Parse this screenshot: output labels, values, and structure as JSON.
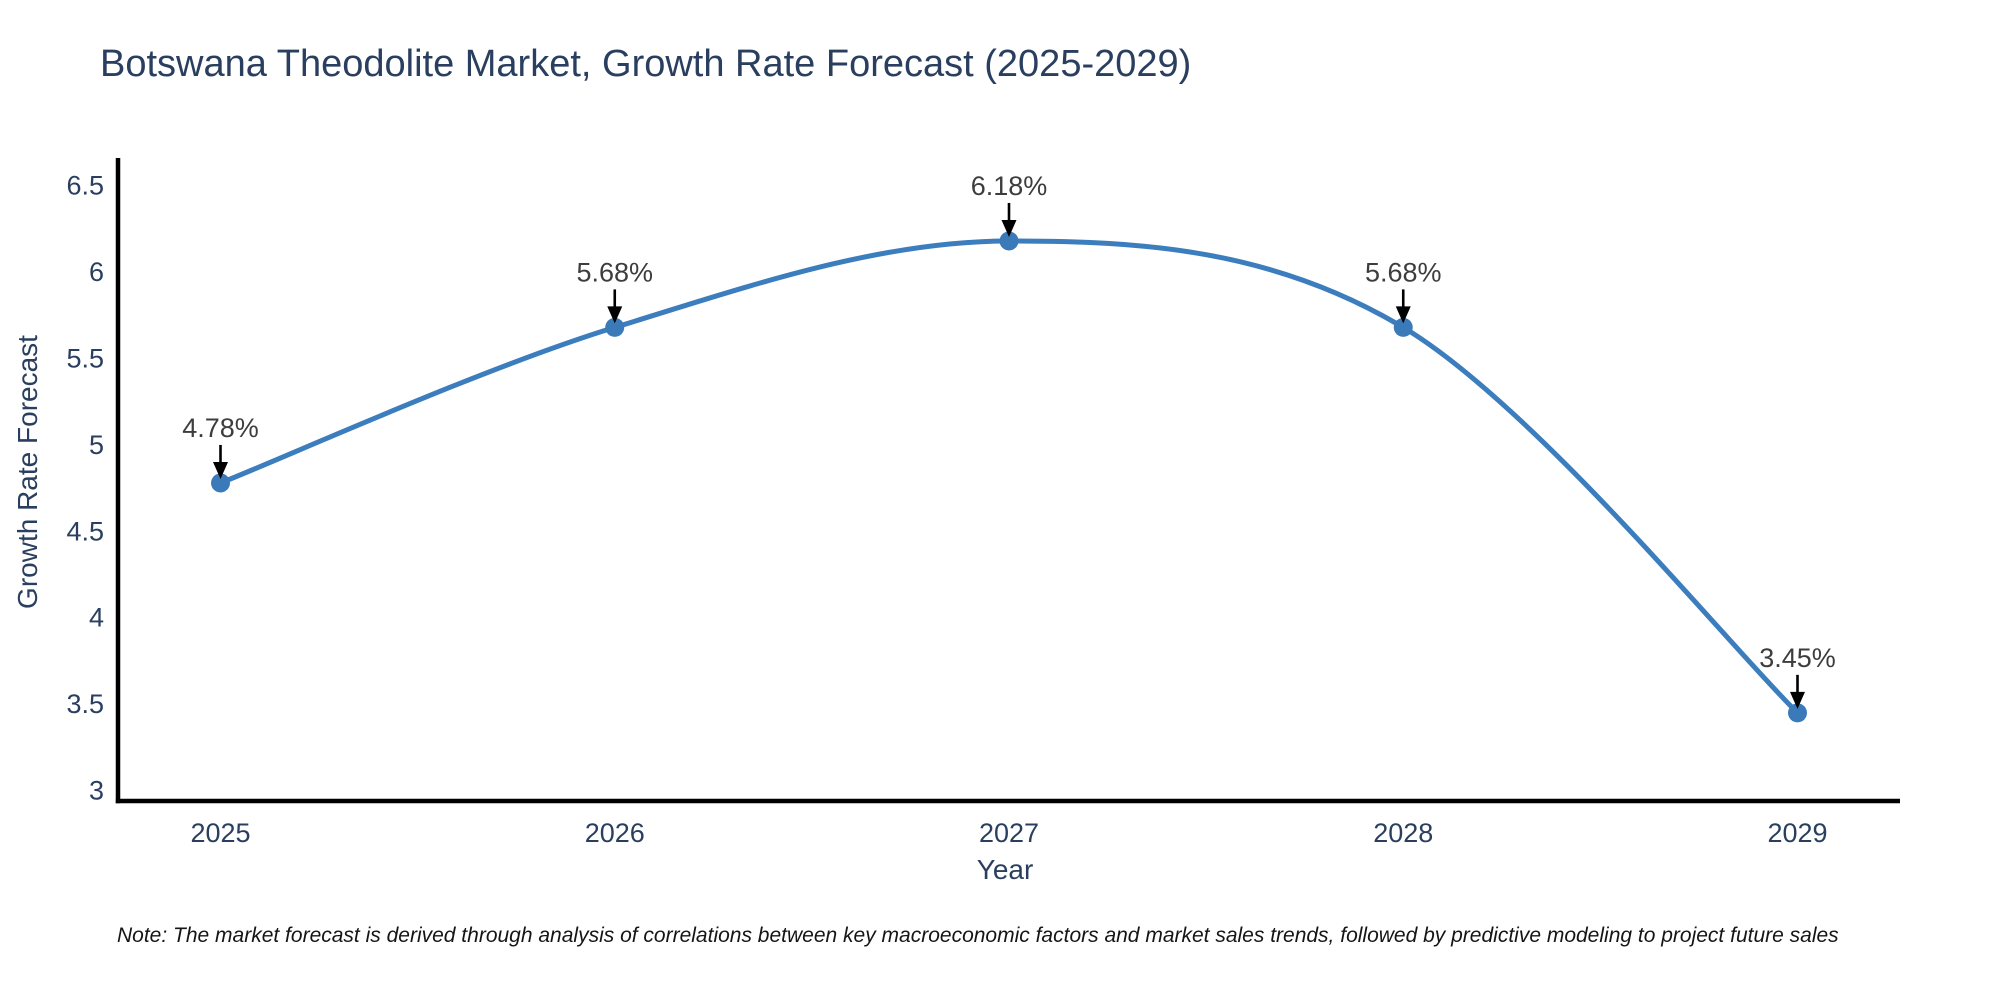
{
  "page": {
    "footnote": "Note: The market forecast is derived through analysis of correlations between key macroeconomic factors and market sales trends, followed by predictive modeling to project future sales"
  },
  "chart_data": {
    "type": "line",
    "title": "Botswana Theodolite Market, Growth Rate Forecast (2025-2029)",
    "xlabel": "Year",
    "ylabel": "Growth Rate Forecast",
    "x": [
      2025,
      2026,
      2027,
      2028,
      2029
    ],
    "series": [
      {
        "name": "Growth Rate Forecast",
        "values": [
          4.78,
          5.68,
          6.18,
          5.68,
          3.45
        ],
        "labels": [
          "4.78%",
          "5.68%",
          "6.18%",
          "5.68%",
          "3.45%"
        ]
      }
    ],
    "xticks": [
      2025,
      2026,
      2027,
      2028,
      2029
    ],
    "yticks": [
      3,
      3.5,
      4,
      4.5,
      5,
      5.5,
      6,
      6.5
    ],
    "xlim": [
      2024.74,
      2029.26
    ],
    "ylim": [
      2.94,
      6.66
    ],
    "grid": false,
    "legend": "none",
    "line_shape": "spline",
    "marker": "circle",
    "annotation_style": "value labels with downward arrows onto points",
    "colors": {
      "line": "#3c7dbe",
      "marker": "#3b7ab9",
      "axis": "#000000",
      "tick_text": "#2a3f5f",
      "title_text": "#2a3f5f",
      "annotation_text": "#3d3d3d",
      "arrow": "#000000",
      "background": "#ffffff"
    }
  }
}
